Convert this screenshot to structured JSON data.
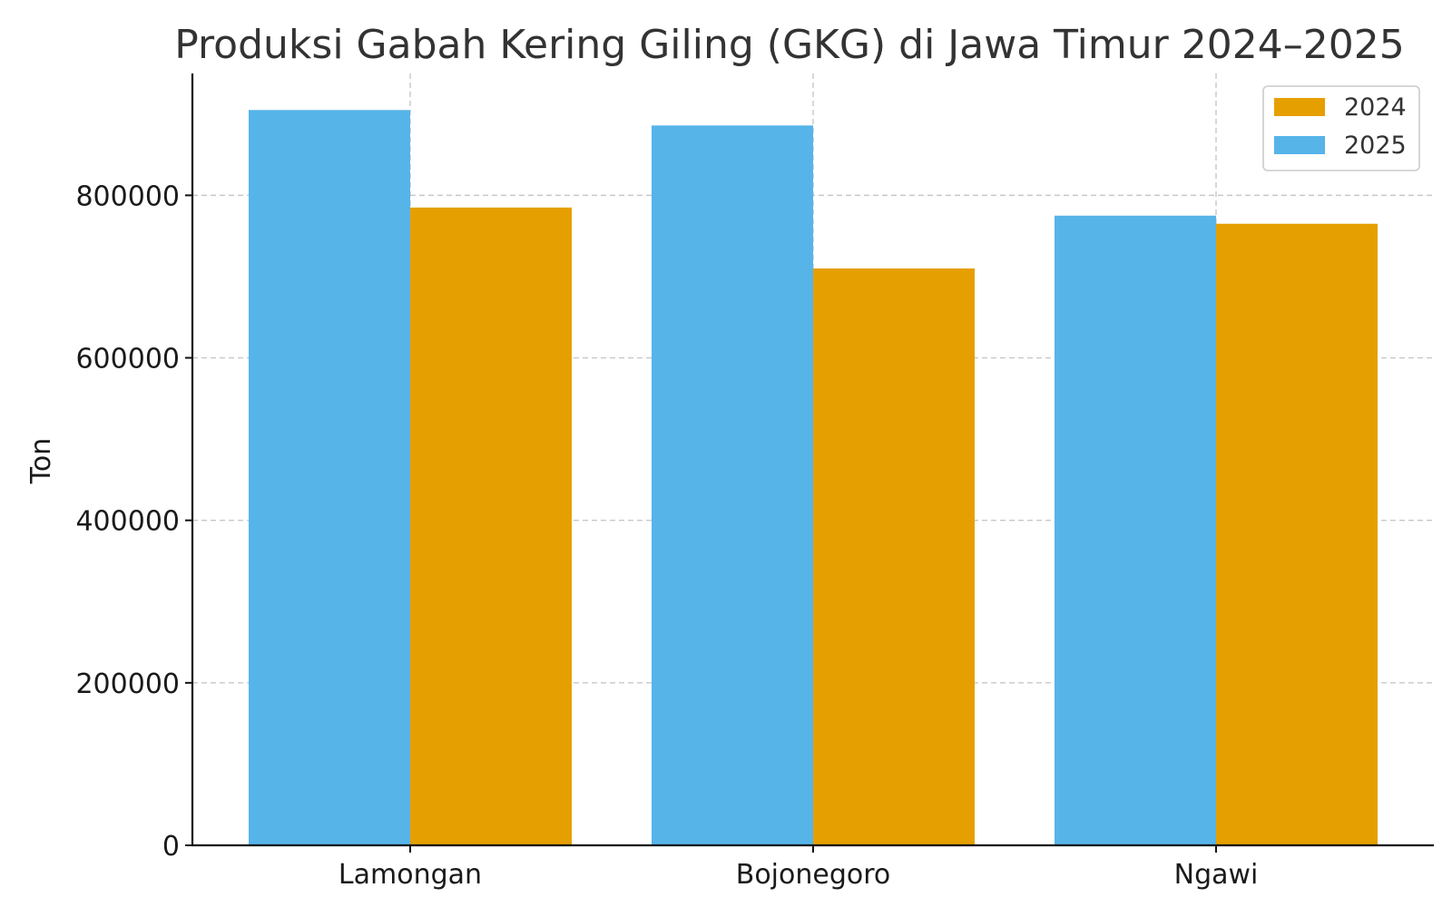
{
  "chart_data": {
    "type": "bar",
    "title": "Produksi Gabah Kering Giling (GKG) di Jawa Timur 2024–2025",
    "xlabel": "",
    "ylabel": "Ton",
    "categories": [
      "Lamongan",
      "Bojonegoro",
      "Ngawi"
    ],
    "series": [
      {
        "name": "2025",
        "color": "#56B4E9",
        "values": [
          905000,
          886000,
          775000
        ]
      },
      {
        "name": "2024",
        "color": "#E69F00",
        "values": [
          785000,
          710000,
          765000
        ]
      }
    ],
    "ylim": [
      0,
      950000
    ],
    "yticks": [
      0,
      200000,
      400000,
      600000,
      800000
    ],
    "ytick_labels": [
      "0",
      "200000",
      "400000",
      "600000",
      "800000"
    ],
    "grid": true,
    "legend": {
      "position": "top-right",
      "entries": [
        {
          "label": "2024",
          "color": "#E69F00"
        },
        {
          "label": "2025",
          "color": "#56B4E9"
        }
      ]
    }
  }
}
